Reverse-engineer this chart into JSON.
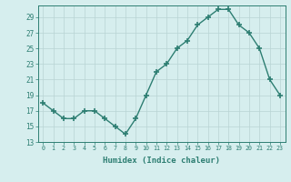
{
  "x": [
    0,
    1,
    2,
    3,
    4,
    5,
    6,
    7,
    8,
    9,
    10,
    11,
    12,
    13,
    14,
    15,
    16,
    17,
    18,
    19,
    20,
    21,
    22,
    23
  ],
  "y": [
    18,
    17,
    16,
    16,
    17,
    17,
    16,
    15,
    14,
    16,
    19,
    22,
    23,
    25,
    26,
    28,
    29,
    30,
    30,
    28,
    27,
    25,
    21,
    19
  ],
  "xlabel": "Humidex (Indice chaleur)",
  "ylabel": "",
  "xlim": [
    -0.5,
    23.5
  ],
  "ylim": [
    13,
    30.5
  ],
  "yticks": [
    13,
    15,
    17,
    19,
    21,
    23,
    25,
    27,
    29
  ],
  "xticks": [
    0,
    1,
    2,
    3,
    4,
    5,
    6,
    7,
    8,
    9,
    10,
    11,
    12,
    13,
    14,
    15,
    16,
    17,
    18,
    19,
    20,
    21,
    22,
    23
  ],
  "line_color": "#2d7e72",
  "marker_color": "#2d7e72",
  "bg_color": "#d6eeee",
  "grid_color": "#b8d4d4",
  "label_color": "#2d7e72",
  "tick_color": "#2d7e72"
}
